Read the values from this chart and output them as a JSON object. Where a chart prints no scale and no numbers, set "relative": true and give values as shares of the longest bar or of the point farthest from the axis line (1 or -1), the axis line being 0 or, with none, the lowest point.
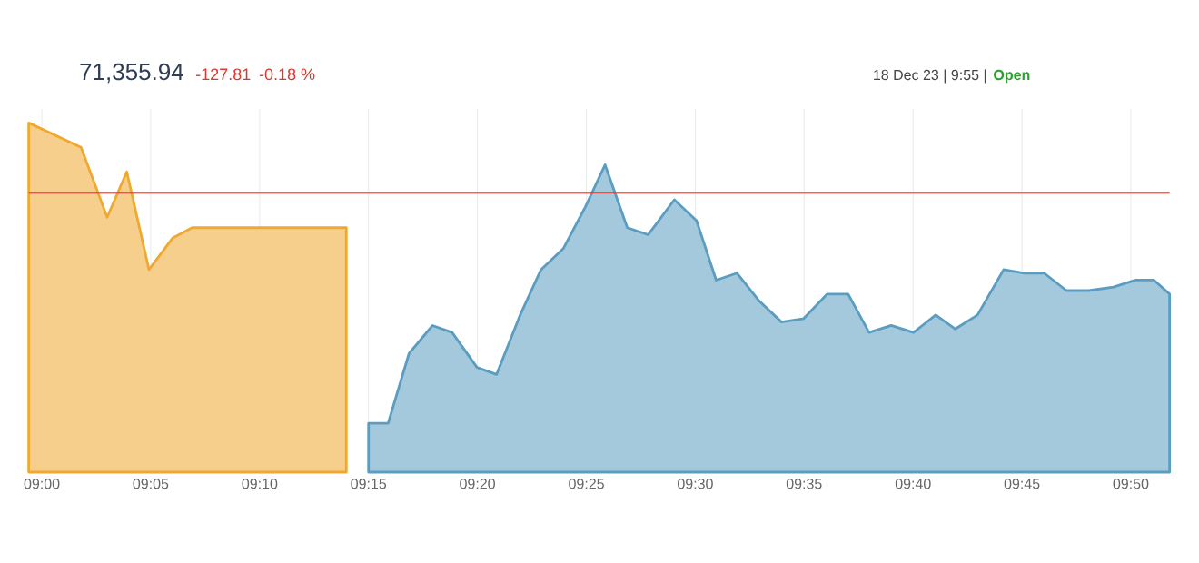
{
  "chart_data": {
    "type": "area",
    "relative": true,
    "title": "71,355.94",
    "annotations": [
      "-127.81",
      "-0.18 %",
      "18 Dec 23 | 9:55 |",
      "Open"
    ],
    "xlim": [
      8.99,
      9.863
    ],
    "xticks": [
      {
        "value": 9.0,
        "label": "09:00"
      },
      {
        "value": 9.0833,
        "label": "09:05"
      },
      {
        "value": 9.1667,
        "label": "09:10"
      },
      {
        "value": 9.25,
        "label": "09:15"
      },
      {
        "value": 9.3333,
        "label": "09:20"
      },
      {
        "value": 9.4167,
        "label": "09:25"
      },
      {
        "value": 9.5,
        "label": "09:30"
      },
      {
        "value": 9.5833,
        "label": "09:35"
      },
      {
        "value": 9.6667,
        "label": "09:40"
      },
      {
        "value": 9.75,
        "label": "09:45"
      },
      {
        "value": 9.8333,
        "label": "09:50"
      }
    ],
    "grid": "x",
    "ref_lines": [
      {
        "axis": "y",
        "value": 0.8,
        "color": "#d9382c"
      }
    ],
    "series": [
      {
        "color": "#f0a830",
        "x": [
          8.99,
          9.03,
          9.05,
          9.065,
          9.082,
          9.1,
          9.115,
          9.233
        ],
        "values": [
          1.0,
          0.93,
          0.73,
          0.86,
          0.58,
          0.67,
          0.7,
          0.7
        ]
      },
      {
        "color": "#5b9dc0",
        "x": [
          9.25,
          9.265,
          9.281,
          9.299,
          9.314,
          9.333,
          9.348,
          9.366,
          9.382,
          9.399,
          9.416,
          9.431,
          9.448,
          9.464,
          9.484,
          9.501,
          9.516,
          9.532,
          9.549,
          9.566,
          9.583,
          9.601,
          9.617,
          9.633,
          9.65,
          9.667,
          9.684,
          9.699,
          9.716,
          9.736,
          9.752,
          9.767,
          9.784,
          9.801,
          9.82,
          9.837,
          9.851,
          9.863
        ],
        "values": [
          0.14,
          0.14,
          0.34,
          0.42,
          0.4,
          0.3,
          0.28,
          0.45,
          0.58,
          0.64,
          0.76,
          0.88,
          0.7,
          0.68,
          0.78,
          0.72,
          0.55,
          0.57,
          0.49,
          0.43,
          0.44,
          0.51,
          0.51,
          0.4,
          0.42,
          0.4,
          0.45,
          0.41,
          0.45,
          0.58,
          0.57,
          0.57,
          0.52,
          0.52,
          0.53,
          0.55,
          0.55,
          0.51
        ]
      }
    ]
  }
}
